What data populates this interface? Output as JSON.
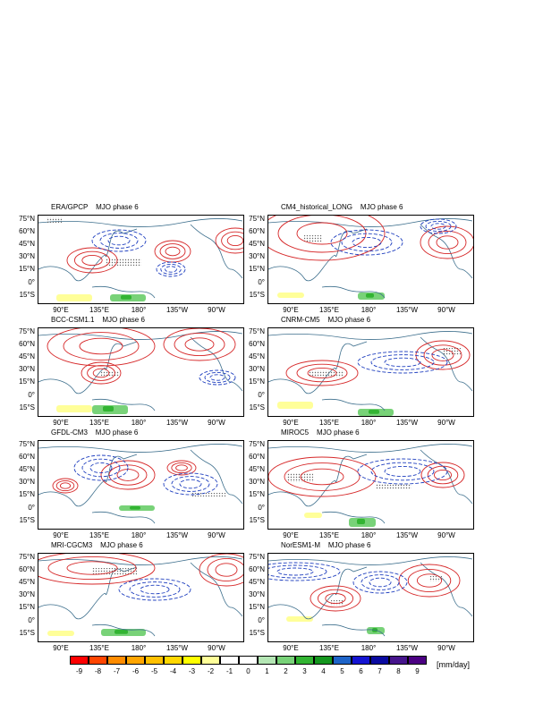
{
  "panels": [
    {
      "model": "ERA/GPCP",
      "phase": "MJO phase 6"
    },
    {
      "model": "CM4_historical_LONG",
      "phase": "MJO phase 6"
    },
    {
      "model": "BCC-CSM1.1",
      "phase": "MJO phase 6"
    },
    {
      "model": "CNRM-CM5",
      "phase": "MJO phase 6"
    },
    {
      "model": "GFDL-CM3",
      "phase": "MJO phase 6"
    },
    {
      "model": "MIROC5",
      "phase": "MJO phase 6"
    },
    {
      "model": "MRI-CGCM3",
      "phase": "MJO phase 6"
    },
    {
      "model": "NorESM1-M",
      "phase": "MJO phase 6"
    }
  ],
  "lat_labels": [
    "75°N",
    "60°N",
    "45°N",
    "30°N",
    "15°N",
    "0°",
    "15°S"
  ],
  "lon_labels": [
    "90°E",
    "135°E",
    "180°",
    "135°W",
    "90°W"
  ],
  "colorbar": {
    "labels": [
      "-9",
      "-8",
      "-7",
      "-6",
      "-5",
      "-4",
      "-3",
      "-2",
      "-1",
      "0",
      "1",
      "2",
      "3",
      "4",
      "5",
      "6",
      "7",
      "8",
      "9"
    ],
    "colors": [
      "#ff0000",
      "#ff4500",
      "#ff8c00",
      "#ffa500",
      "#ffc000",
      "#ffd700",
      "#ffff00",
      "#ffff99",
      "#ffffff",
      "#ffffff",
      "#b4e6b4",
      "#78d278",
      "#32b432",
      "#14961e",
      "#1e64c8",
      "#1414d2",
      "#0a0aa0",
      "#46148c",
      "#4b0082"
    ],
    "unit": "[mm/day]"
  },
  "colors": {
    "positive_contour": "#d62728",
    "negative_contour": "#1f3fbf",
    "coast": "#3c6e8c"
  }
}
